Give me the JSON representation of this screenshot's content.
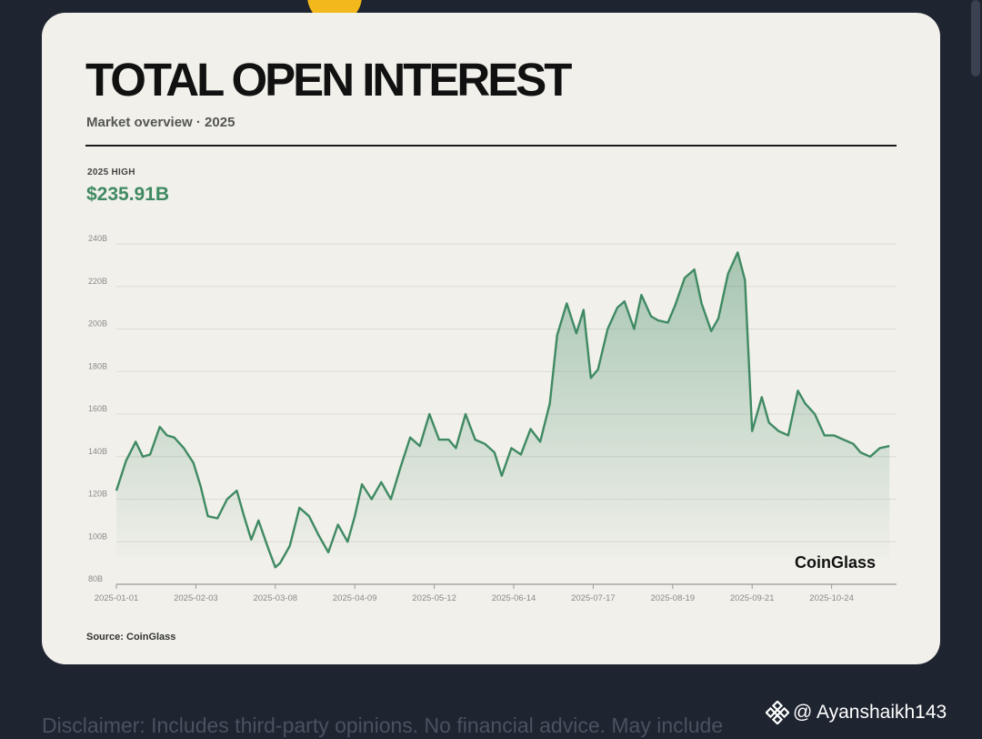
{
  "header": {
    "title": "TOTAL OPEN INTEREST",
    "subtitle": "Market overview · 2025"
  },
  "stat": {
    "label": "2025 HIGH",
    "value": "$235.91B"
  },
  "chart_data": {
    "type": "area",
    "title": "TOTAL OPEN INTEREST",
    "subtitle": "Market overview · 2025",
    "x_ticks": [
      "2025-01-01",
      "2025-02-03",
      "2025-03-08",
      "2025-04-09",
      "2025-05-12",
      "2025-06-14",
      "2025-07-17",
      "2025-08-19",
      "2025-09-21",
      "2025-10-24"
    ],
    "y_ticks": [
      "80B",
      "100B",
      "120B",
      "140B",
      "160B",
      "180B",
      "200B",
      "220B",
      "240B"
    ],
    "ylim": [
      80,
      240
    ],
    "unit": "B",
    "grid": true,
    "line_color": "#3f8a63",
    "brand": "CoinGlass",
    "series": [
      {
        "x": [
          "2025-01-01",
          "2025-01-05",
          "2025-01-09",
          "2025-01-12",
          "2025-01-15",
          "2025-01-19",
          "2025-01-22",
          "2025-01-25",
          "2025-01-29",
          "2025-02-02",
          "2025-02-05",
          "2025-02-08",
          "2025-02-12",
          "2025-02-16",
          "2025-02-20",
          "2025-02-23",
          "2025-02-26",
          "2025-03-01",
          "2025-03-05",
          "2025-03-08",
          "2025-03-10",
          "2025-03-14",
          "2025-03-18",
          "2025-03-22",
          "2025-03-26",
          "2025-03-30",
          "2025-04-03",
          "2025-04-07",
          "2025-04-10",
          "2025-04-13",
          "2025-04-17",
          "2025-04-21",
          "2025-04-25",
          "2025-04-29",
          "2025-05-03",
          "2025-05-07",
          "2025-05-11",
          "2025-05-15",
          "2025-05-19",
          "2025-05-22",
          "2025-05-26",
          "2025-05-30",
          "2025-06-03",
          "2025-06-07",
          "2025-06-10",
          "2025-06-14",
          "2025-06-18",
          "2025-06-22",
          "2025-06-26",
          "2025-06-30",
          "2025-07-03",
          "2025-07-07",
          "2025-07-11",
          "2025-07-14",
          "2025-07-17",
          "2025-07-20",
          "2025-07-24",
          "2025-07-28",
          "2025-07-31",
          "2025-08-04",
          "2025-08-07",
          "2025-08-11",
          "2025-08-14",
          "2025-08-18",
          "2025-08-21",
          "2025-08-25",
          "2025-08-29",
          "2025-09-01",
          "2025-09-05",
          "2025-09-08",
          "2025-09-12",
          "2025-09-16",
          "2025-09-19",
          "2025-09-22",
          "2025-09-26",
          "2025-09-29",
          "2025-10-03",
          "2025-10-07",
          "2025-10-11",
          "2025-10-14",
          "2025-10-18",
          "2025-10-22",
          "2025-10-26",
          "2025-10-30",
          "2025-11-03",
          "2025-11-06",
          "2025-11-10",
          "2025-11-14",
          "2025-11-18"
        ],
        "y": [
          124,
          138,
          147,
          140,
          141,
          154,
          150,
          149,
          144,
          137,
          126,
          112,
          111,
          120,
          124,
          112,
          101,
          110,
          97,
          88,
          90,
          98,
          116,
          112,
          103,
          95,
          108,
          100,
          112,
          127,
          120,
          128,
          120,
          135,
          149,
          145,
          160,
          148,
          148,
          144,
          160,
          148,
          146,
          142,
          131,
          144,
          141,
          153,
          147,
          165,
          197,
          212,
          198,
          209,
          177,
          181,
          200,
          210,
          213,
          200,
          216,
          206,
          204,
          203,
          211,
          224,
          228,
          212,
          199,
          205,
          226,
          236,
          223,
          152,
          168,
          156,
          152,
          150,
          171,
          165,
          160,
          150,
          150,
          148,
          146,
          142,
          140,
          144,
          145
        ]
      }
    ]
  },
  "source": "Source: CoinGlass",
  "disclaimer": "Disclaimer: Includes third-party opinions. No financial advice. May include",
  "watermark": {
    "icon": "binance-icon",
    "handle": "@ Ayanshaikh143"
  }
}
